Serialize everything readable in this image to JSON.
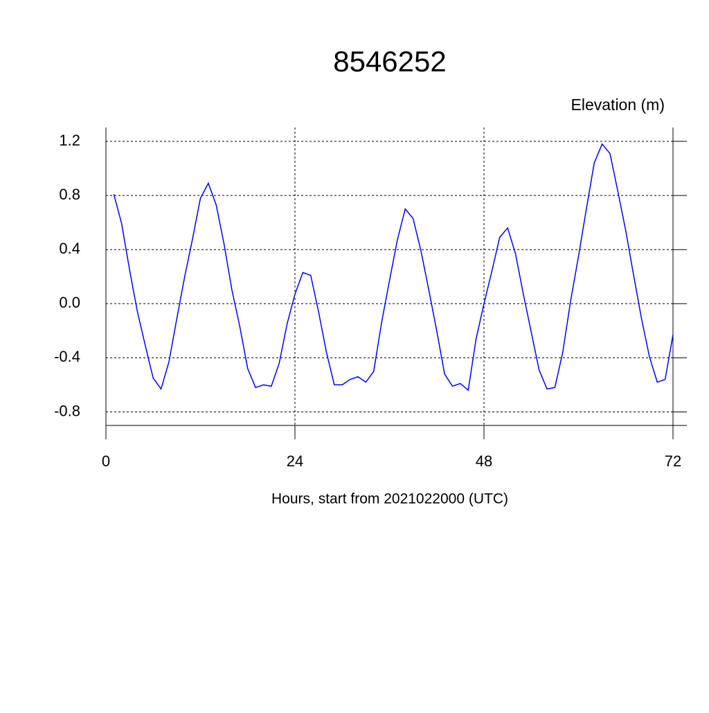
{
  "chart_data": {
    "type": "line",
    "title": "8546252",
    "subtitle": "Elevation (m)",
    "x_label": "Hours, start from 2021022000 (UTC)",
    "x": [
      1,
      2,
      3,
      4,
      5,
      6,
      7,
      8,
      9,
      10,
      11,
      12,
      13,
      14,
      15,
      16,
      17,
      18,
      19,
      20,
      21,
      22,
      23,
      24,
      25,
      26,
      27,
      28,
      29,
      30,
      31,
      32,
      33,
      34,
      35,
      36,
      37,
      38,
      39,
      40,
      41,
      42,
      43,
      44,
      45,
      46,
      47,
      48,
      49,
      50,
      51,
      52,
      53,
      54,
      55,
      56,
      57,
      58,
      59,
      60,
      61,
      62,
      63,
      64,
      65,
      66,
      67,
      68,
      69,
      70,
      71,
      72
    ],
    "series": [
      {
        "color": "#0000ff",
        "values": [
          0.81,
          0.59,
          0.25,
          -0.06,
          -0.31,
          -0.55,
          -0.63,
          -0.43,
          -0.11,
          0.2,
          0.48,
          0.78,
          0.89,
          0.73,
          0.44,
          0.1,
          -0.17,
          -0.48,
          -0.62,
          -0.6,
          -0.61,
          -0.44,
          -0.15,
          0.07,
          0.23,
          0.21,
          -0.06,
          -0.36,
          -0.6,
          -0.6,
          -0.56,
          -0.54,
          -0.58,
          -0.5,
          -0.14,
          0.17,
          0.47,
          0.7,
          0.63,
          0.39,
          0.1,
          -0.2,
          -0.52,
          -0.61,
          -0.59,
          -0.64,
          -0.26,
          0.0,
          0.24,
          0.49,
          0.56,
          0.37,
          0.07,
          -0.21,
          -0.49,
          -0.63,
          -0.62,
          -0.36,
          0.02,
          0.35,
          0.7,
          1.04,
          1.18,
          1.11,
          0.83,
          0.54,
          0.21,
          -0.11,
          -0.39,
          -0.58,
          -0.56,
          -0.23
        ]
      }
    ],
    "xlim": [
      0,
      72
    ],
    "xticks": [
      0,
      24,
      48,
      72
    ],
    "ylim": [
      -0.9,
      1.2
    ],
    "yticks": [
      {
        "value": -0.8,
        "label": "-0.8"
      },
      {
        "value": -0.4,
        "label": "-0.4"
      },
      {
        "value": 0,
        "label": "0.0"
      },
      {
        "value": 0.4,
        "label": "0.4"
      },
      {
        "value": 0.8,
        "label": "0.8"
      },
      {
        "value": 1.2,
        "label": "1.2"
      }
    ],
    "grid": true
  }
}
